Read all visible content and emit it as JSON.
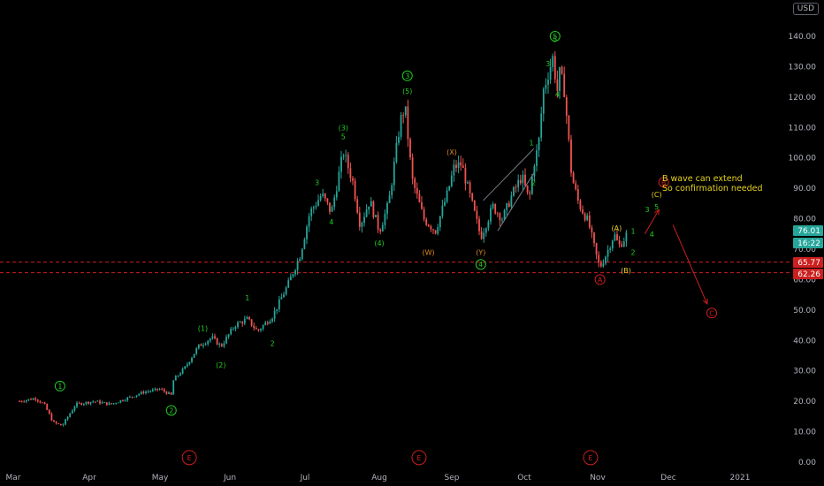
{
  "currency_button": "USD",
  "chart_data": {
    "type": "candlestick",
    "x_axis": {
      "tick_labels": [
        "Mar",
        "Apr",
        "May",
        "Jun",
        "Jul",
        "Aug",
        "Sep",
        "Oct",
        "Nov",
        "Dec",
        "2021"
      ]
    },
    "y_axis": {
      "range": [
        0,
        145
      ],
      "tick_values": [
        0,
        10,
        20,
        30,
        40,
        50,
        60,
        70,
        80,
        90,
        100,
        110,
        120,
        130,
        140
      ],
      "tick_labels": [
        "0.00",
        "10.00",
        "20.00",
        "30.00",
        "40.00",
        "50.00",
        "60.00",
        "70.00",
        "80.00",
        "90.00",
        "100.00",
        "110.00",
        "120.00",
        "130.00",
        "140.00"
      ],
      "side": "right"
    },
    "grid": false,
    "price_path": [
      {
        "date": "Mar 01",
        "price": 20
      },
      {
        "date": "Mar 08",
        "price": 21
      },
      {
        "date": "Mar 12",
        "price": 19
      },
      {
        "date": "Mar 16",
        "price": 13
      },
      {
        "date": "Mar 20",
        "price": 12
      },
      {
        "date": "Mar 26",
        "price": 19
      },
      {
        "date": "Apr 03",
        "price": 20
      },
      {
        "date": "Apr 10",
        "price": 19
      },
      {
        "date": "Apr 17",
        "price": 21
      },
      {
        "date": "Apr 24",
        "price": 23
      },
      {
        "date": "May 01",
        "price": 24
      },
      {
        "date": "May 06",
        "price": 22
      },
      {
        "date": "May 07",
        "price": 27
      },
      {
        "date": "May 12",
        "price": 31
      },
      {
        "date": "May 18",
        "price": 38
      },
      {
        "date": "May 24",
        "price": 41
      },
      {
        "date": "May 28",
        "price": 38
      },
      {
        "date": "Jun 03",
        "price": 45
      },
      {
        "date": "Jun 08",
        "price": 47
      },
      {
        "date": "Jun 12",
        "price": 43
      },
      {
        "date": "Jun 18",
        "price": 48
      },
      {
        "date": "Jun 24",
        "price": 58
      },
      {
        "date": "Jun 29",
        "price": 68
      },
      {
        "date": "Jul 03",
        "price": 82
      },
      {
        "date": "Jul 08",
        "price": 88
      },
      {
        "date": "Jul 12",
        "price": 82
      },
      {
        "date": "Jul 17",
        "price": 102
      },
      {
        "date": "Jul 21",
        "price": 92
      },
      {
        "date": "Jul 24",
        "price": 78
      },
      {
        "date": "Jul 28",
        "price": 86
      },
      {
        "date": "Aug 01",
        "price": 76
      },
      {
        "date": "Aug 05",
        "price": 85
      },
      {
        "date": "Aug 10",
        "price": 112
      },
      {
        "date": "Aug 12",
        "price": 117
      },
      {
        "date": "Aug 15",
        "price": 93
      },
      {
        "date": "Aug 20",
        "price": 80
      },
      {
        "date": "Aug 25",
        "price": 76
      },
      {
        "date": "Aug 30",
        "price": 88
      },
      {
        "date": "Sep 02",
        "price": 97
      },
      {
        "date": "Sep 05",
        "price": 98
      },
      {
        "date": "Sep 09",
        "price": 86
      },
      {
        "date": "Sep 13",
        "price": 74
      },
      {
        "date": "Sep 18",
        "price": 84
      },
      {
        "date": "Sep 22",
        "price": 80
      },
      {
        "date": "Sep 26",
        "price": 88
      },
      {
        "date": "Sep 30",
        "price": 94
      },
      {
        "date": "Oct 03",
        "price": 86
      },
      {
        "date": "Oct 05",
        "price": 98
      },
      {
        "date": "Oct 07",
        "price": 104
      },
      {
        "date": "Oct 09",
        "price": 122
      },
      {
        "date": "Oct 13",
        "price": 133
      },
      {
        "date": "Oct 15",
        "price": 122
      },
      {
        "date": "Oct 16",
        "price": 128
      },
      {
        "date": "Oct 18",
        "price": 122
      },
      {
        "date": "Oct 21",
        "price": 94
      },
      {
        "date": "Oct 24",
        "price": 85
      },
      {
        "date": "Oct 28",
        "price": 79
      },
      {
        "date": "Nov 01",
        "price": 66
      },
      {
        "date": "Nov 02",
        "price": 64
      },
      {
        "date": "Nov 05",
        "price": 69
      },
      {
        "date": "Nov 08",
        "price": 75
      },
      {
        "date": "Nov 10",
        "price": 71
      },
      {
        "date": "Nov 12",
        "price": 73
      },
      {
        "date": "Nov 14",
        "price": 76
      }
    ],
    "last_price": 76.01,
    "price_badges": [
      {
        "label": "76.01",
        "color": "#26a69a"
      },
      {
        "label": "16:22",
        "color": "#26a69a"
      },
      {
        "label": "65.77",
        "color": "#cc1f1f"
      },
      {
        "label": "62.26",
        "color": "#cc1f1f"
      }
    ],
    "horizontal_lines": [
      {
        "price": 65.77,
        "color": "#cc1f1f",
        "style": "dashed"
      },
      {
        "price": 62.26,
        "color": "#cc1f1f",
        "style": "dashed"
      }
    ],
    "annotations": [
      {
        "text": "1",
        "date": "Mar 19",
        "price": 25,
        "color": "#22cc22",
        "circled": true
      },
      {
        "text": "2",
        "date": "May 06",
        "price": 17,
        "color": "#22cc22",
        "circled": true
      },
      {
        "text": "(1)",
        "date": "May 20",
        "price": 44,
        "color": "#22cc22"
      },
      {
        "text": "(2)",
        "date": "May 28",
        "price": 32,
        "color": "#22cc22"
      },
      {
        "text": "1",
        "date": "Jun 08",
        "price": 54,
        "color": "#22cc22"
      },
      {
        "text": "2",
        "date": "Jun 18",
        "price": 39,
        "color": "#22cc22"
      },
      {
        "text": "(3)",
        "date": "Jul 17",
        "price": 110,
        "color": "#22cc22"
      },
      {
        "text": "5",
        "date": "Jul 17",
        "price": 107,
        "color": "#22cc22"
      },
      {
        "text": "3",
        "date": "Jul 06",
        "price": 92,
        "color": "#22cc22"
      },
      {
        "text": "4",
        "date": "Jul 12",
        "price": 79,
        "color": "#22cc22"
      },
      {
        "text": "(4)",
        "date": "Aug 01",
        "price": 72,
        "color": "#22cc22"
      },
      {
        "text": "3",
        "date": "Aug 13",
        "price": 127,
        "color": "#22cc22",
        "circled": true
      },
      {
        "text": "(5)",
        "date": "Aug 13",
        "price": 122,
        "color": "#22cc22"
      },
      {
        "text": "(W)",
        "date": "Aug 22",
        "price": 69,
        "color": "#e08a1e"
      },
      {
        "text": "(X)",
        "date": "Sep 01",
        "price": 102,
        "color": "#e08a1e"
      },
      {
        "text": "(Y)",
        "date": "Sep 13",
        "price": 69,
        "color": "#e08a1e"
      },
      {
        "text": "4",
        "date": "Sep 13",
        "price": 65,
        "color": "#22cc22",
        "circled": true
      },
      {
        "text": "1",
        "date": "Oct 04",
        "price": 105,
        "color": "#22cc22"
      },
      {
        "text": "2",
        "date": "Oct 05",
        "price": 92,
        "color": "#22cc22"
      },
      {
        "text": "3",
        "date": "Oct 11",
        "price": 131,
        "color": "#22cc22"
      },
      {
        "text": "4",
        "date": "Oct 15",
        "price": 121,
        "color": "#22cc22"
      },
      {
        "text": "5",
        "date": "Oct 14",
        "price": 140,
        "color": "#22cc22",
        "circled": true
      },
      {
        "text": "5",
        "date": "Oct 14",
        "price": 139,
        "color": "#22cc22"
      },
      {
        "text": "(A)",
        "date": "Nov 09",
        "price": 77,
        "color": "#e6d11e"
      },
      {
        "text": "(B)",
        "date": "Nov 13",
        "price": 63,
        "color": "#e6d11e"
      },
      {
        "text": "(C)",
        "date": "Nov 26",
        "price": 88,
        "color": "#e6d11e"
      },
      {
        "text": "1",
        "date": "Nov 16",
        "price": 76,
        "color": "#22cc22"
      },
      {
        "text": "2",
        "date": "Nov 16",
        "price": 69,
        "color": "#22cc22"
      },
      {
        "text": "3",
        "date": "Nov 22",
        "price": 83,
        "color": "#22cc22"
      },
      {
        "text": "4",
        "date": "Nov 24",
        "price": 75,
        "color": "#22cc22"
      },
      {
        "text": "5",
        "date": "Nov 26",
        "price": 84,
        "color": "#22cc22"
      },
      {
        "text": "A",
        "date": "Nov 02",
        "price": 60,
        "color": "#cc1f1f",
        "circled": true
      },
      {
        "text": "B",
        "date": "Nov 29",
        "price": 92,
        "color": "#cc1f1f",
        "circled": true
      },
      {
        "text": "C",
        "date": "Dec 20",
        "price": 49,
        "color": "#cc1f1f",
        "circled": true
      },
      {
        "text": "E",
        "date": "May 14",
        "price": 1.5,
        "color": "#cc1f1f",
        "circled": true
      },
      {
        "text": "E",
        "date": "Aug 18",
        "price": 1.5,
        "color": "#cc1f1f",
        "circled": true
      },
      {
        "text": "E",
        "date": "Oct 29",
        "price": 1.5,
        "color": "#cc1f1f",
        "circled": true
      }
    ],
    "note_lines": [
      "B wave can extend",
      "So confirmation needed"
    ],
    "note_color": "#e6d11e",
    "arrows": [
      {
        "from": {
          "date": "Nov 21",
          "price": 75
        },
        "to": {
          "date": "Nov 27",
          "price": 83
        },
        "color": "#cc1f1f"
      },
      {
        "from": {
          "date": "Dec 03",
          "price": 78
        },
        "to": {
          "date": "Dec 18",
          "price": 52
        },
        "color": "#cc1f1f"
      }
    ],
    "channel": [
      {
        "from": {
          "date": "Sep 14",
          "price": 86
        },
        "to": {
          "date": "Oct 05",
          "price": 103
        },
        "color": "#787b86"
      },
      {
        "from": {
          "date": "Sep 20",
          "price": 76
        },
        "to": {
          "date": "Oct 05",
          "price": 95
        },
        "color": "#787b86"
      }
    ],
    "colors": {
      "up": "#26a69a",
      "down": "#ef5350",
      "background": "#000000"
    }
  }
}
